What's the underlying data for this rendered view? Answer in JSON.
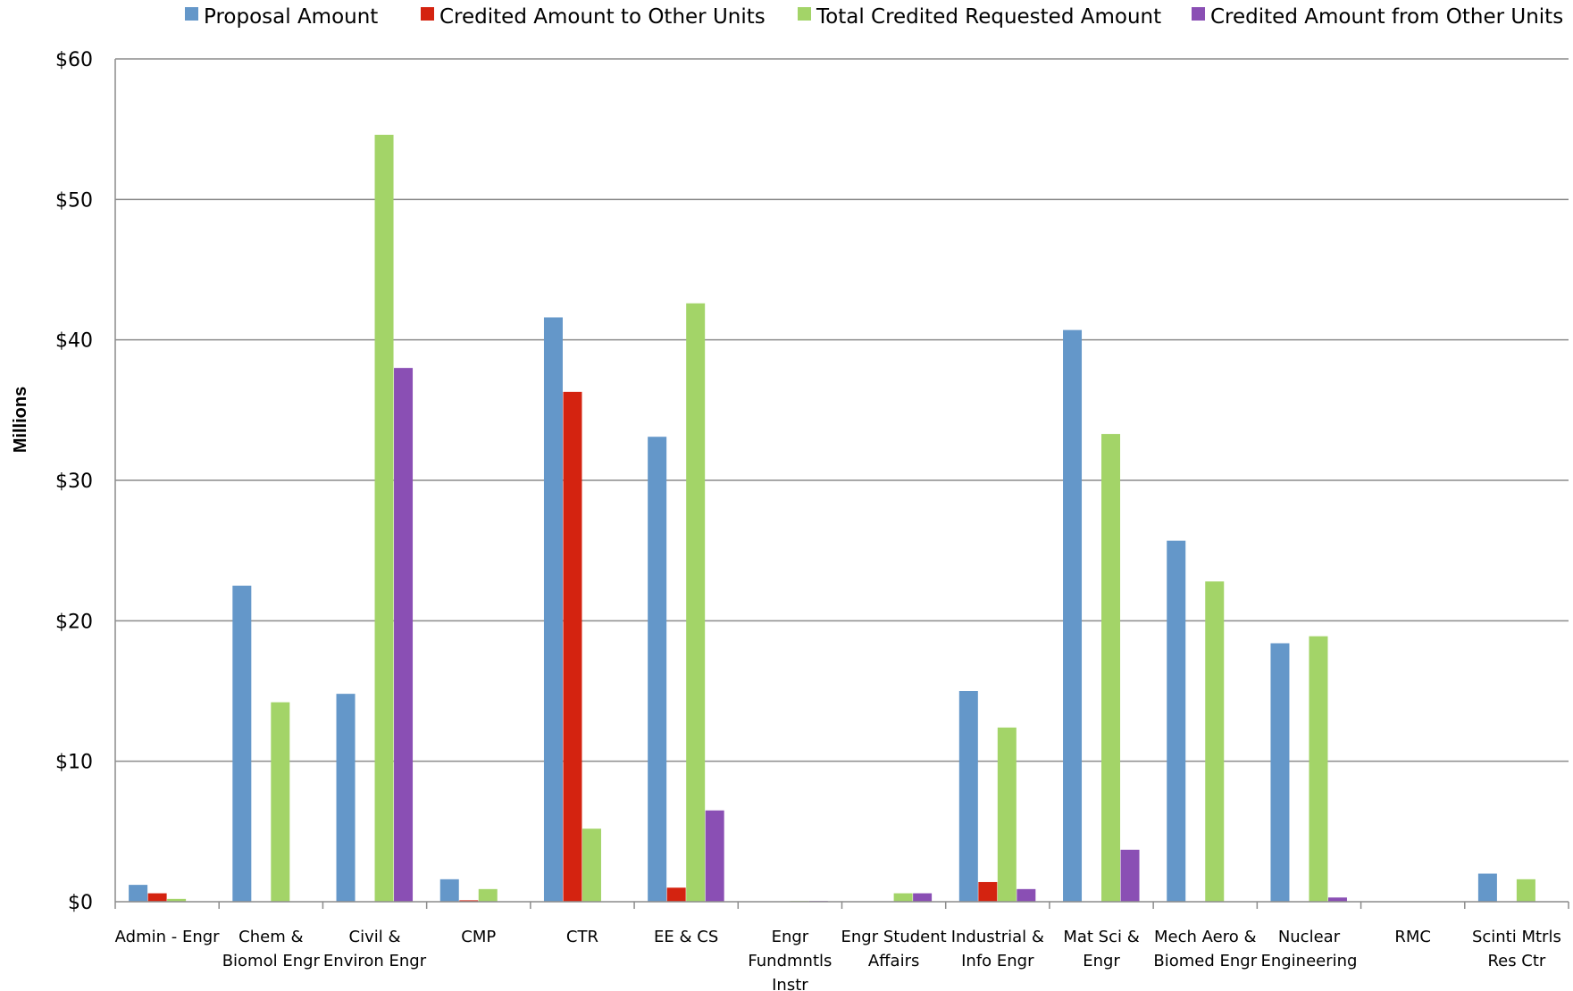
{
  "chart_data": {
    "type": "bar",
    "title": "",
    "xlabel": "",
    "ylabel": "Millions",
    "ylim": [
      0,
      60
    ],
    "yticks": [
      0,
      10,
      20,
      30,
      40,
      50,
      60
    ],
    "ytick_labels": [
      "$0",
      "$10",
      "$20",
      "$30",
      "$40",
      "$50",
      "$60"
    ],
    "grid": true,
    "legend_position": "top",
    "categories": [
      [
        "Admin - Engr"
      ],
      [
        "Chem &",
        "Biomol Engr"
      ],
      [
        "Civil &",
        "Environ Engr"
      ],
      [
        "CMP"
      ],
      [
        "CTR"
      ],
      [
        "EE & CS"
      ],
      [
        "Engr",
        "Fundmntls",
        "Instr"
      ],
      [
        "Engr Student",
        "Affairs"
      ],
      [
        "Industrial &",
        "Info Engr"
      ],
      [
        "Mat Sci &",
        "Engr"
      ],
      [
        "Mech Aero &",
        "Biomed Engr"
      ],
      [
        "Nuclear",
        "Engineering"
      ],
      [
        "RMC"
      ],
      [
        "Scinti Mtrls",
        "Res Ctr"
      ]
    ],
    "series": [
      {
        "name": "Proposal Amount",
        "color": "#6497c9",
        "values": [
          1.2,
          22.5,
          14.8,
          1.6,
          41.6,
          33.1,
          0,
          0,
          15.0,
          40.7,
          25.7,
          18.4,
          0,
          2.0
        ]
      },
      {
        "name": "Credited Amount to Other Units",
        "color": "#d42310",
        "values": [
          0.6,
          0,
          0,
          0.1,
          36.3,
          1.0,
          0,
          0,
          1.4,
          0,
          0,
          0,
          0,
          0
        ]
      },
      {
        "name": "Total Credited Requested Amount",
        "color": "#a3d468",
        "values": [
          0.2,
          14.2,
          54.6,
          0.9,
          5.2,
          42.6,
          0.05,
          0.6,
          12.4,
          33.3,
          22.8,
          18.9,
          0,
          1.6
        ]
      },
      {
        "name": "Credited Amount from Other Units",
        "color": "#8a4fb4",
        "values": [
          0,
          0,
          38.0,
          0,
          0,
          6.5,
          0.05,
          0.6,
          0.9,
          3.7,
          0,
          0.3,
          0,
          0
        ]
      }
    ]
  }
}
